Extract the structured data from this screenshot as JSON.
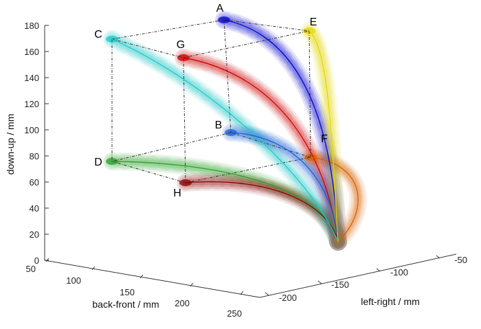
{
  "chart_data": {
    "type": "line",
    "projection": "3d",
    "axes": {
      "x": {
        "label": "back-front / mm",
        "ticks": [
          "50",
          "100",
          "150",
          "200",
          "250"
        ]
      },
      "y": {
        "label": "left-right / mm",
        "ticks": [
          "-200",
          "-150",
          "-100",
          "-50"
        ]
      },
      "z": {
        "label": "down-up / mm",
        "ticks": [
          "0",
          "20",
          "40",
          "60",
          "80",
          "100",
          "120",
          "140",
          "160",
          "180"
        ]
      }
    },
    "grid": false,
    "cube_corners": [
      {
        "label": "A",
        "color": "#0000cc"
      },
      {
        "label": "B",
        "color": "#1a5fd6"
      },
      {
        "label": "C",
        "color": "#19c9c9"
      },
      {
        "label": "D",
        "color": "#2aa02a"
      },
      {
        "label": "E",
        "color": "#e6d800"
      },
      {
        "label": "F",
        "color": "#d95f00"
      },
      {
        "label": "G",
        "color": "#cc0000"
      },
      {
        "label": "H",
        "color": "#8b0000"
      }
    ]
  }
}
